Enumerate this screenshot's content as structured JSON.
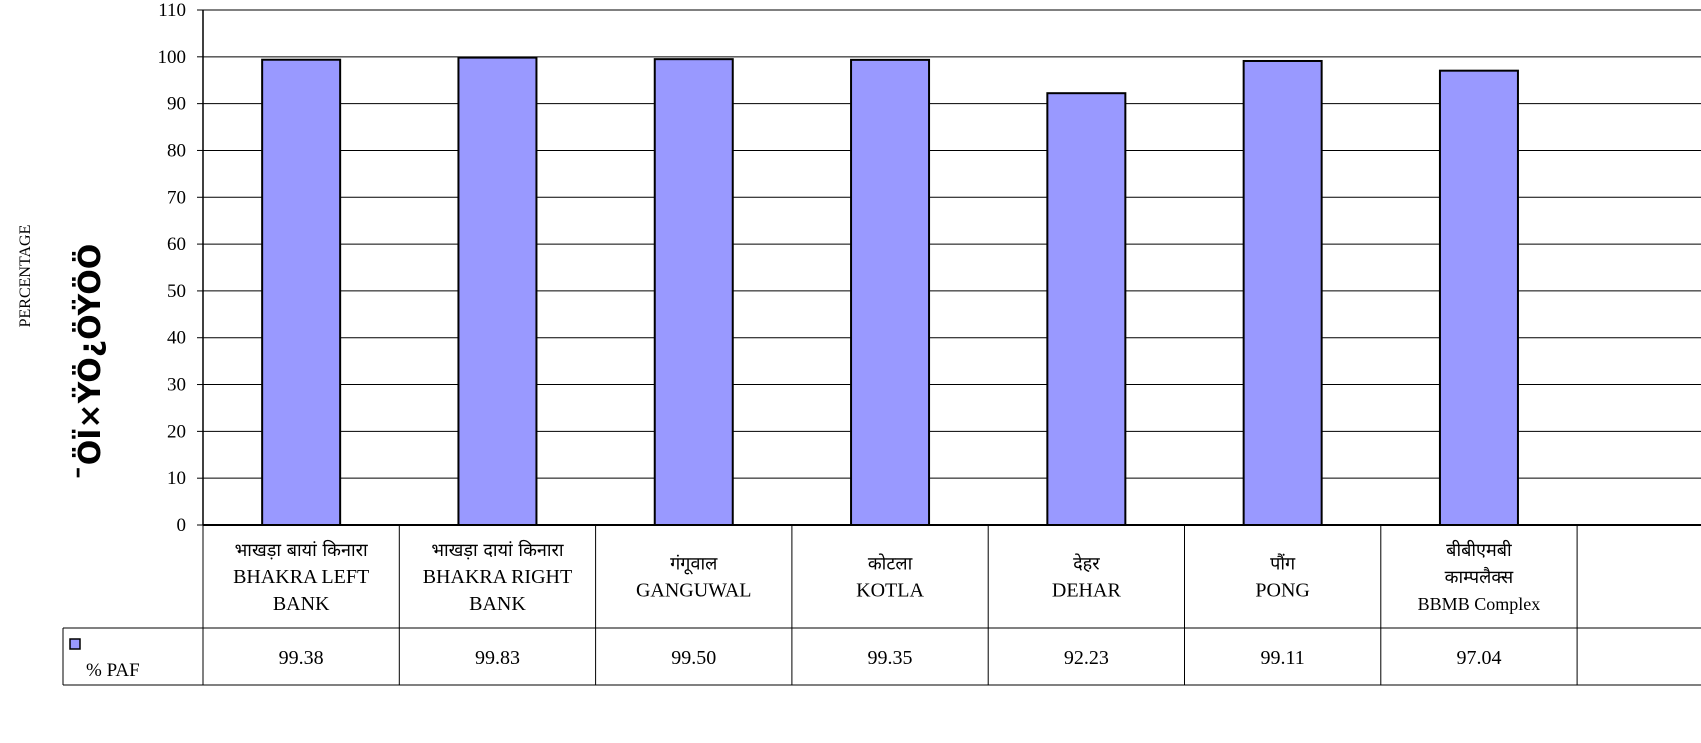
{
  "chart_data": {
    "type": "bar",
    "ylabel": "PERCENTAGE",
    "ylabel_garbled": "¯ÖÏ×ŸÖ¿ÖŸÖÖ",
    "ylim": [
      0,
      110
    ],
    "yticks": [
      0,
      10,
      20,
      30,
      40,
      50,
      60,
      70,
      80,
      90,
      100,
      110
    ],
    "grid": true,
    "categories": [
      {
        "hindi": [
          "भाखड़ा बायां किनारा"
        ],
        "english": [
          "BHAKRA LEFT",
          "BANK"
        ]
      },
      {
        "hindi": [
          "भाखड़ा दायां किनारा"
        ],
        "english": [
          "BHAKRA RIGHT",
          "BANK"
        ]
      },
      {
        "hindi": [
          "गंगूवाल"
        ],
        "english": [
          "GANGUWAL"
        ]
      },
      {
        "hindi": [
          "कोटला"
        ],
        "english": [
          "KOTLA"
        ]
      },
      {
        "hindi": [
          "देहर"
        ],
        "english": [
          "DEHAR"
        ]
      },
      {
        "hindi": [
          "पौंग"
        ],
        "english": [
          "PONG"
        ]
      },
      {
        "hindi": [
          "बीबीएमबी",
          "काम्पलैक्स"
        ],
        "english": [
          "BBMB Complex"
        ]
      }
    ],
    "series": [
      {
        "name": "% PAF",
        "color": "#9999FF",
        "values": [
          99.38,
          99.83,
          99.5,
          99.35,
          92.23,
          99.11,
          97.04
        ],
        "labels": [
          "99.38",
          "99.83",
          "99.50",
          "99.35",
          "92.23",
          "99.11",
          "97.04"
        ]
      }
    ]
  }
}
